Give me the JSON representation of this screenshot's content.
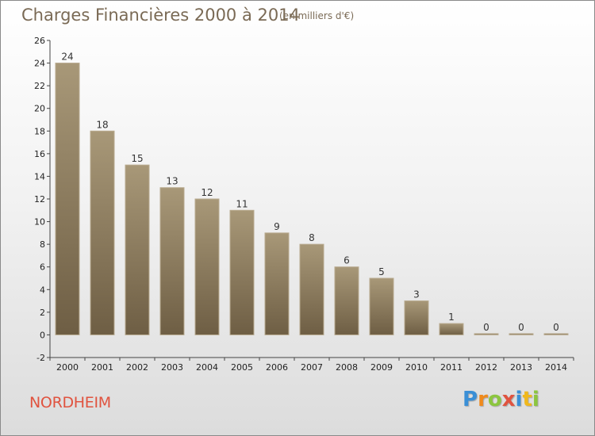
{
  "chart_data": {
    "type": "bar",
    "title": "Charges Financières 2000 à 2014",
    "subtitle": "(en milliers d'€)",
    "categories": [
      "2000",
      "2001",
      "2002",
      "2003",
      "2004",
      "2005",
      "2006",
      "2007",
      "2008",
      "2009",
      "2010",
      "2011",
      "2012",
      "2013",
      "2014"
    ],
    "values": [
      24,
      18,
      15,
      13,
      12,
      11,
      9,
      8,
      6,
      5,
      3,
      1,
      0,
      0,
      0
    ],
    "ylim": [
      -2,
      26
    ],
    "yticks": [
      -2,
      0,
      2,
      4,
      6,
      8,
      10,
      12,
      14,
      16,
      18,
      20,
      22,
      24,
      26
    ],
    "xlabel": "",
    "ylabel": "",
    "grid": false,
    "bar_color_top": "#a89878",
    "bar_color_bottom": "#6e5e44"
  },
  "commune": "NORDHEIM",
  "logo": {
    "letters": [
      "P",
      "r",
      "o",
      "x",
      "i",
      "t",
      "i"
    ],
    "colors": [
      "#3a8fd6",
      "#f08a1c",
      "#8cc63f",
      "#e0533f",
      "#3a8fd6",
      "#f0b81c",
      "#8cc63f"
    ]
  }
}
